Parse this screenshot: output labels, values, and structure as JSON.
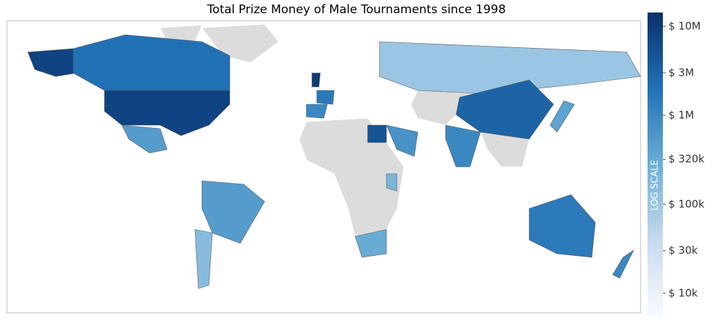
{
  "chart_data": {
    "type": "choropleth",
    "title": "Total Prize Money of Male Tournaments since 1998",
    "colorbar_title": "LOG SCALE",
    "log_scale": true,
    "zlim": [
      5500,
      14300000
    ],
    "zticks": [
      {
        "value": 10000000,
        "label": "$ 10M"
      },
      {
        "value": 3000000,
        "label": "$ 3M"
      },
      {
        "value": 1000000,
        "label": "$ 1M"
      },
      {
        "value": 320000,
        "label": "$ 320k"
      },
      {
        "value": 100000,
        "label": "$ 100k"
      },
      {
        "value": 30000,
        "label": "$ 30k"
      },
      {
        "value": 10000,
        "label": "$ 10k"
      }
    ],
    "colorscale": [
      "#f7fbff",
      "#c6dbef",
      "#6baed6",
      "#2171b5",
      "#08306b"
    ],
    "values": [
      8000000,
      8000000,
      2000000,
      500000,
      500000,
      150000,
      10000000,
      1500000,
      1000000,
      5000000,
      100000,
      3000000,
      1000000,
      1500000,
      300000,
      700000,
      400000,
      200000,
      1000000
    ]
  }
}
